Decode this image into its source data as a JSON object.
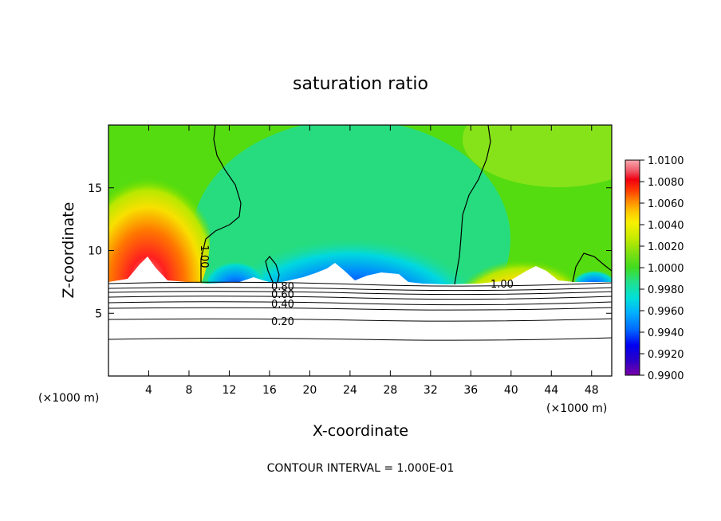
{
  "chart_data": {
    "type": "heatmap",
    "title": "saturation ratio",
    "xlabel": "X-coordinate",
    "ylabel": "Z-coordinate",
    "x_unit_left": "(×1000 m)",
    "x_unit_right": "(×1000 m)",
    "xlim": [
      0,
      50
    ],
    "ylim": [
      0,
      20
    ],
    "x_ticks": [
      4,
      8,
      12,
      16,
      20,
      24,
      28,
      32,
      36,
      40,
      44,
      48
    ],
    "y_ticks": [
      5,
      10,
      15
    ],
    "colorbar": {
      "min": 0.99,
      "max": 1.01,
      "labels": [
        "1.0100",
        "1.0080",
        "1.0060",
        "1.0040",
        "1.0020",
        "1.0000",
        "0.9980",
        "0.9960",
        "0.9940",
        "0.9920",
        "0.9900"
      ],
      "colors": [
        "#7a00a8",
        "#3a00c8",
        "#0000ff",
        "#0066ff",
        "#00a8ff",
        "#00dede",
        "#22e088",
        "#55e000",
        "#a8e800",
        "#f0f000",
        "#ffcc00",
        "#ff8800",
        "#ff4400",
        "#ff0000",
        "#e02020",
        "#f06070",
        "#f8a0a8"
      ]
    },
    "contour_labels": [
      "1.00",
      "1.00",
      "0.80",
      "0.60",
      "0.40",
      "0.20"
    ],
    "contour_interval": "CONTOUR INTERVAL = 1.000E-01"
  }
}
